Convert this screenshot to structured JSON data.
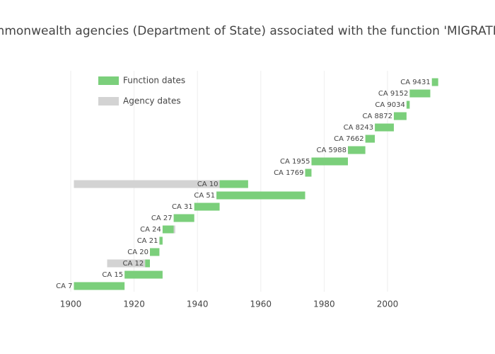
{
  "chart_data": {
    "type": "gantt",
    "title": "Commonwealth agencies (Department of State) associated with the function 'MIGRATION'",
    "categories": [
      "CA 7",
      "CA 15",
      "CA 12",
      "CA 20",
      "CA 21",
      "CA 24",
      "CA 27",
      "CA 31",
      "CA 51",
      "CA 10",
      "CA 1769",
      "CA 1955",
      "CA 5988",
      "CA 7662",
      "CA 8243",
      "CA 8872",
      "CA 9034",
      "CA 9152",
      "CA 9431"
    ],
    "series": [
      {
        "name": "Agency dates",
        "color": "#d3d3d3",
        "start": [
          null,
          null,
          1911.5,
          null,
          null,
          1929,
          null,
          null,
          null,
          1901,
          null,
          null,
          null,
          null,
          null,
          null,
          null,
          null,
          null
        ],
        "end": [
          null,
          null,
          1923.5,
          null,
          null,
          1933,
          null,
          null,
          null,
          1947,
          null,
          null,
          null,
          null,
          null,
          null,
          null,
          null,
          null
        ]
      },
      {
        "name": "Function dates",
        "color": "#7bcf7b",
        "start": [
          1901,
          1917,
          1923.5,
          1925,
          1928,
          1929,
          1932.5,
          1939,
          1946,
          1947,
          1974,
          1976,
          1987.5,
          1993,
          1996,
          2002,
          2006,
          2007,
          2014
        ],
        "end": [
          1917,
          1929,
          1925,
          1928,
          1929,
          1932.5,
          1939,
          1947,
          1974,
          1956,
          1976,
          1987.5,
          1993,
          1996,
          2002,
          2006,
          2007,
          2013.5,
          2016
        ]
      }
    ],
    "xlim": [
      1900,
      2017
    ],
    "xticks": [
      1900,
      1920,
      1940,
      1960,
      1980,
      2000
    ],
    "grid": true
  }
}
